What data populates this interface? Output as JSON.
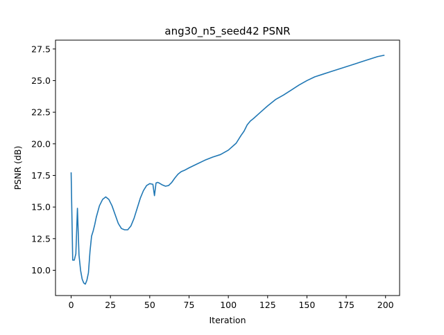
{
  "chart_data": {
    "type": "line",
    "title": "ang30_n5_seed42 PSNR",
    "xlabel": "Iteration",
    "ylabel": "PSNR (dB)",
    "xlim": [
      -9.95,
      208.95
    ],
    "ylim": [
      8.0,
      28.2
    ],
    "xticks": [
      0,
      25,
      50,
      75,
      100,
      125,
      150,
      175,
      200
    ],
    "xtick_labels": [
      "0",
      "25",
      "50",
      "75",
      "100",
      "125",
      "150",
      "175",
      "200"
    ],
    "yticks": [
      10.0,
      12.5,
      15.0,
      17.5,
      20.0,
      22.5,
      25.0,
      27.5
    ],
    "ytick_labels": [
      "10.0",
      "12.5",
      "15.0",
      "17.5",
      "20.0",
      "22.5",
      "25.0",
      "27.5"
    ],
    "grid": false,
    "legend": "none",
    "line_color": "#1f77b4",
    "series": [
      {
        "x": [
          0,
          1,
          2,
          3,
          4,
          5,
          6,
          7,
          8,
          9,
          10,
          11,
          12,
          13,
          14,
          15,
          16,
          18,
          20,
          22,
          24,
          26,
          28,
          30,
          32,
          34,
          36,
          38,
          40,
          42,
          44,
          46,
          48,
          50,
          52,
          53,
          54,
          55,
          56,
          58,
          60,
          62,
          64,
          66,
          68,
          70,
          72,
          75,
          80,
          85,
          90,
          95,
          100,
          105,
          108,
          110,
          112,
          114,
          116,
          120,
          125,
          130,
          135,
          140,
          145,
          150,
          155,
          160,
          165,
          170,
          175,
          180,
          185,
          190,
          195,
          199
        ],
        "y": [
          17.7,
          10.8,
          10.8,
          11.3,
          14.9,
          11.2,
          10.0,
          9.3,
          9.0,
          8.9,
          9.2,
          9.8,
          11.5,
          12.7,
          13.1,
          13.6,
          14.2,
          15.1,
          15.6,
          15.8,
          15.6,
          15.1,
          14.4,
          13.7,
          13.3,
          13.2,
          13.2,
          13.5,
          14.1,
          14.9,
          15.7,
          16.3,
          16.7,
          16.85,
          16.8,
          15.9,
          16.9,
          16.95,
          16.9,
          16.75,
          16.65,
          16.7,
          16.95,
          17.3,
          17.6,
          17.8,
          17.9,
          18.1,
          18.4,
          18.7,
          18.95,
          19.15,
          19.5,
          20.05,
          20.65,
          21.0,
          21.5,
          21.8,
          22.0,
          22.45,
          23.0,
          23.5,
          23.85,
          24.25,
          24.65,
          25.0,
          25.3,
          25.5,
          25.7,
          25.9,
          26.1,
          26.3,
          26.5,
          26.7,
          26.9,
          27.0
        ]
      }
    ]
  }
}
